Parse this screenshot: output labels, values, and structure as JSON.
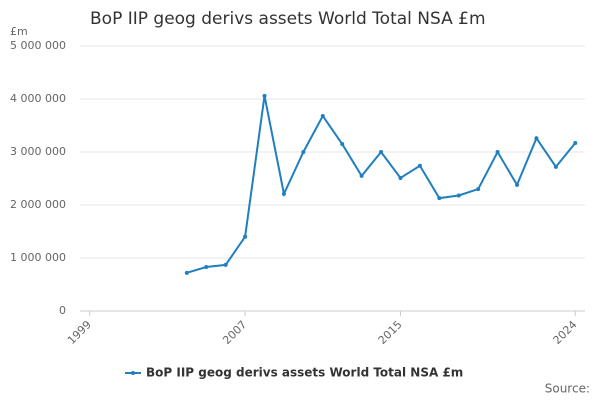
{
  "chart_data": {
    "type": "line",
    "title": "BoP IIP geog derivs assets World Total NSA £m",
    "y_label": "£m",
    "source": "Source:",
    "x": [
      2004,
      2005,
      2006,
      2007,
      2008,
      2009,
      2010,
      2011,
      2012,
      2013,
      2014,
      2015,
      2016,
      2017,
      2018,
      2019,
      2020,
      2021,
      2022,
      2023,
      2024
    ],
    "series": [
      {
        "name": "BoP IIP geog derivs assets World Total NSA £m",
        "color": "#1f7fbf",
        "values": [
          720000,
          830000,
          870000,
          1400000,
          4060000,
          2210000,
          3000000,
          3680000,
          3150000,
          2550000,
          3000000,
          2510000,
          2740000,
          2130000,
          2180000,
          2300000,
          3000000,
          2380000,
          3260000,
          2720000,
          3170000
        ]
      }
    ],
    "xlim": [
      1998.5,
      2024.5
    ],
    "xticks": [
      1999,
      2007,
      2015,
      2024
    ],
    "ylim": [
      0,
      5000000
    ],
    "yticks": [
      0,
      {
        "value": 1000000,
        "label": "1 000 000"
      },
      {
        "value": 2000000,
        "label": "2 000 000"
      },
      {
        "value": 3000000,
        "label": "3 000 000"
      },
      {
        "value": 4000000,
        "label": "4 000 000"
      },
      {
        "value": 5000000,
        "label": "5 000 000"
      }
    ],
    "grid": true
  }
}
